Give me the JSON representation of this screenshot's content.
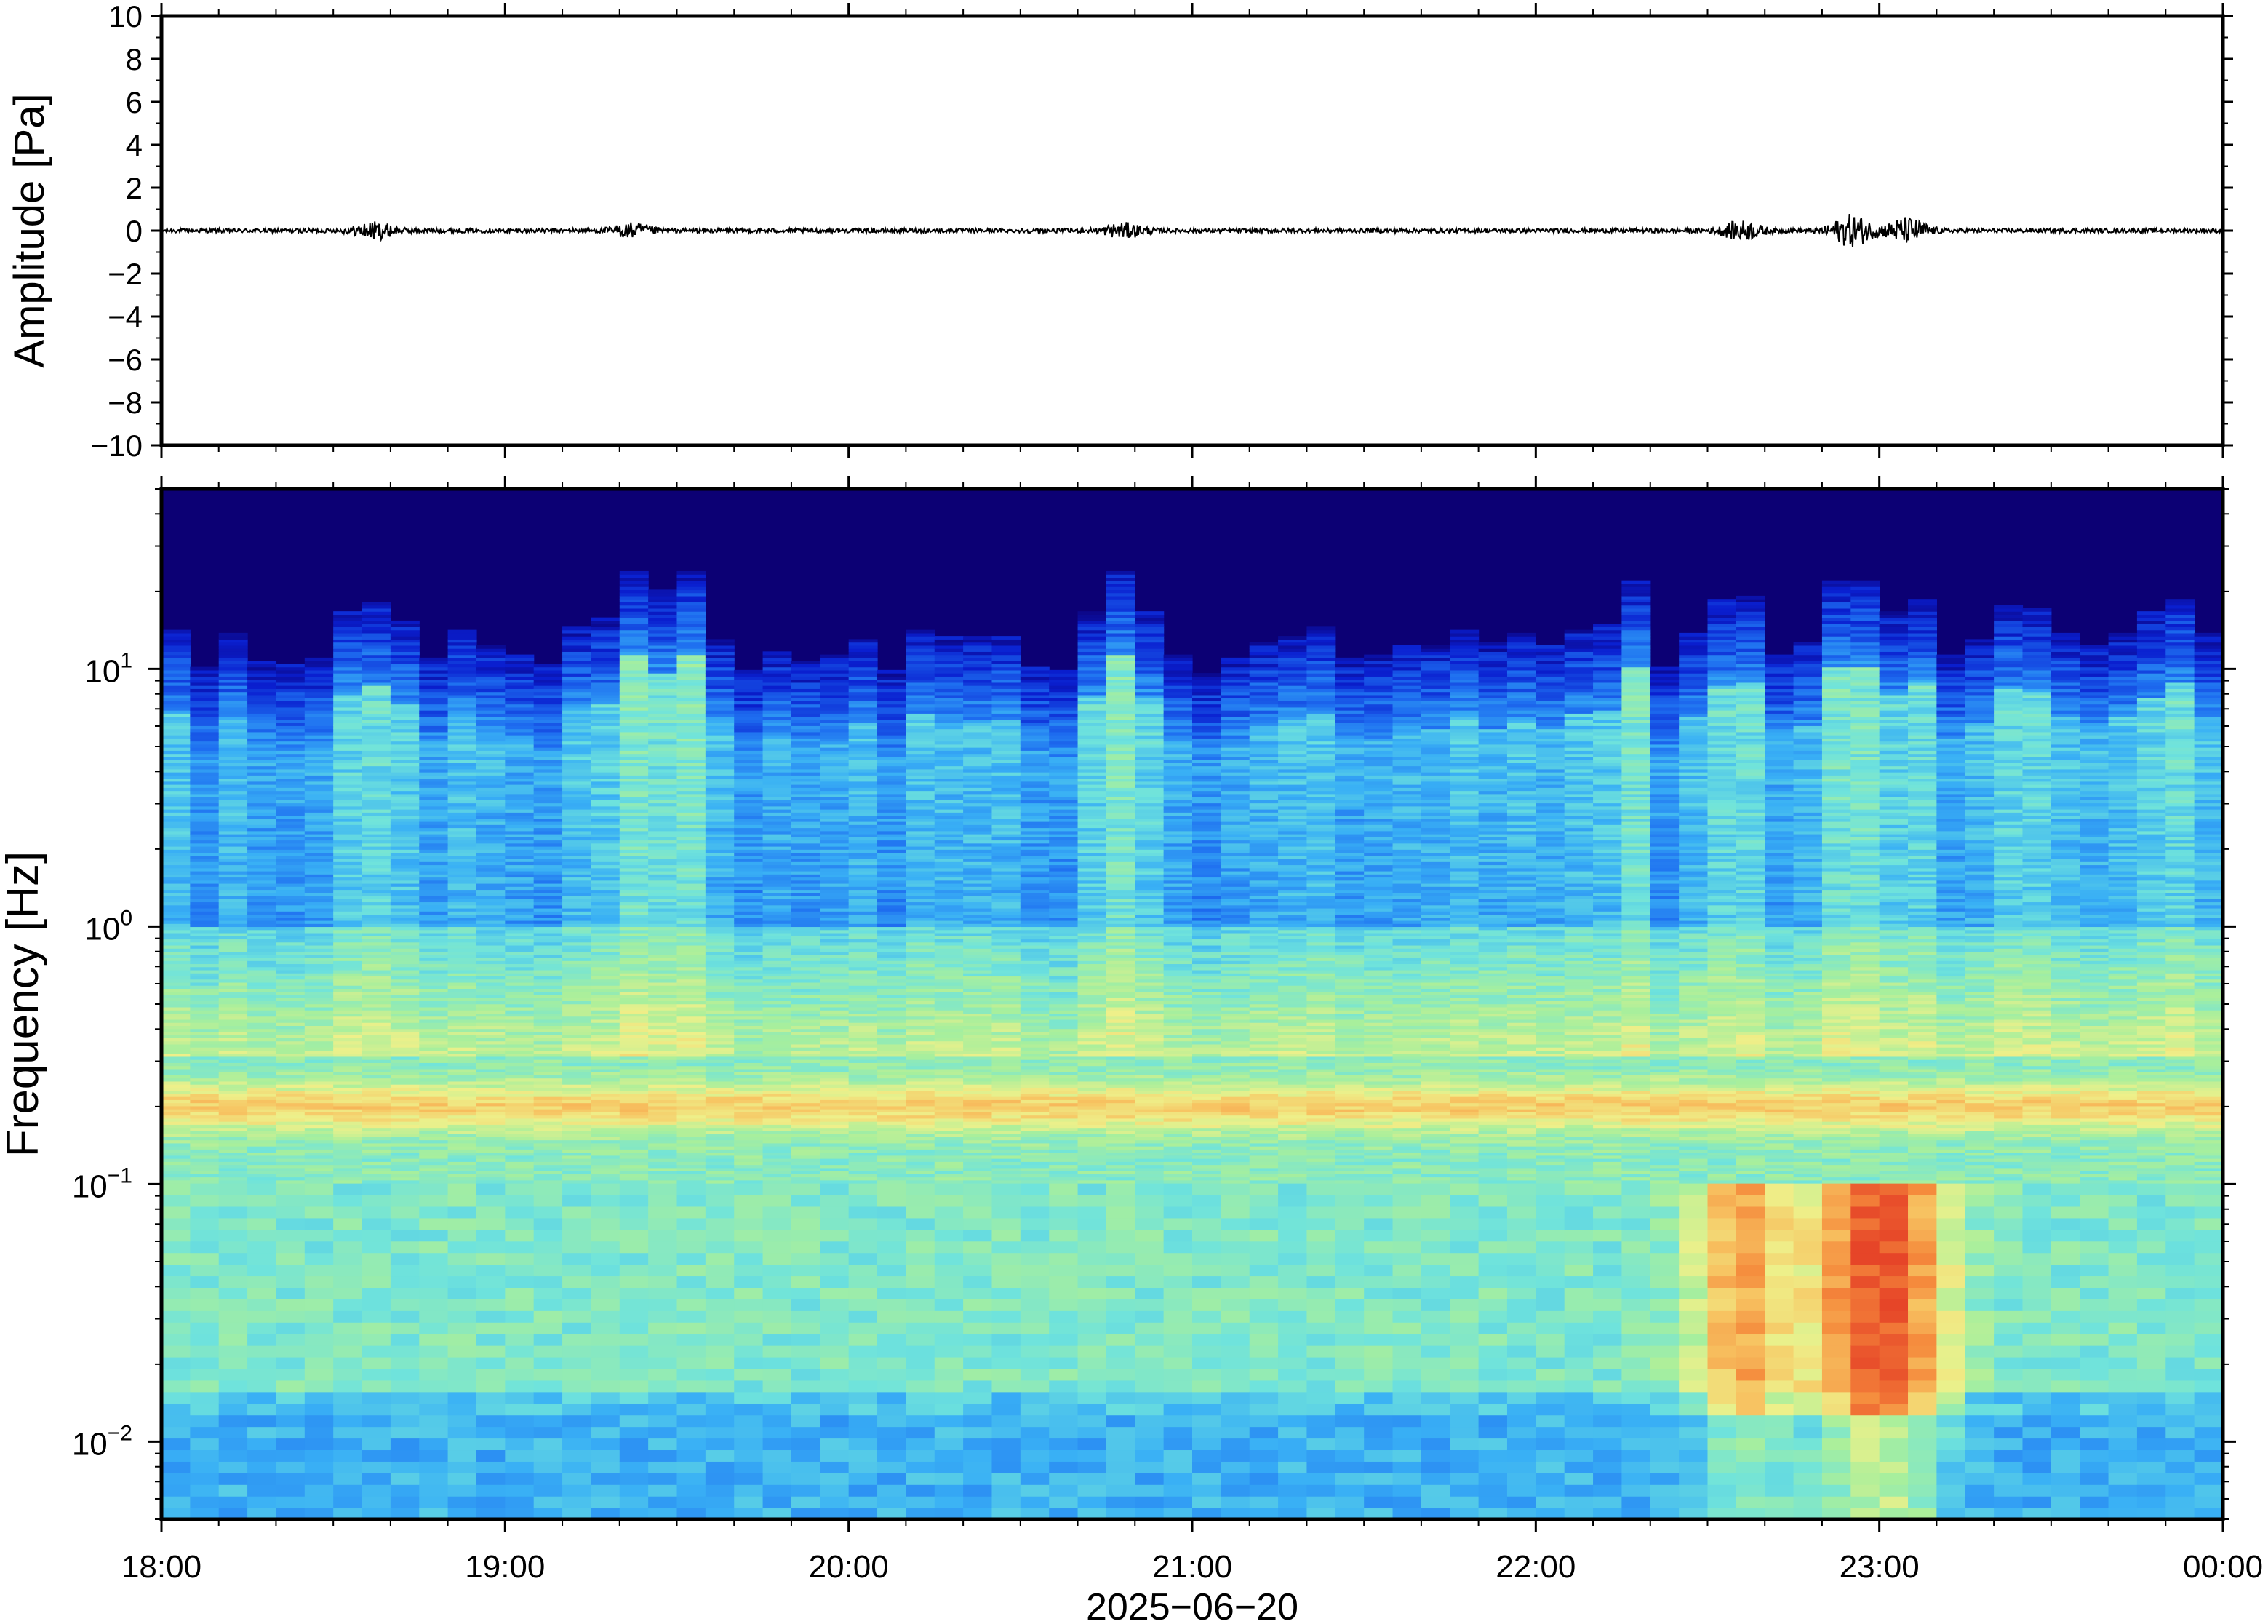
{
  "chart_data": [
    {
      "type": "line",
      "ylabel": "Amplitude [Pa]",
      "ylim": [
        -10,
        10
      ],
      "y_ticks": [
        "10",
        "8",
        "6",
        "4",
        "2",
        "0",
        "−2",
        "−4",
        "−6",
        "−8",
        "−10"
      ],
      "y_tick_values": [
        10,
        8,
        6,
        4,
        2,
        0,
        -2,
        -4,
        -6,
        -8,
        -10
      ],
      "x_range_hours": [
        18,
        24
      ],
      "series": [
        {
          "line_color": "#000000",
          "noise_amplitude_pa": 0.1,
          "bursts": [
            {
              "hour": 18.62,
              "amplitude_pa": 0.35
            },
            {
              "hour": 19.37,
              "amplitude_pa": 0.3
            },
            {
              "hour": 20.8,
              "amplitude_pa": 0.3
            },
            {
              "hour": 22.6,
              "amplitude_pa": 0.4
            },
            {
              "hour": 22.92,
              "amplitude_pa": 0.7
            },
            {
              "hour": 23.08,
              "amplitude_pa": 0.55
            }
          ]
        }
      ]
    },
    {
      "type": "heatmap",
      "ylabel": "Frequency [Hz]",
      "xlabel": "2025−06−20",
      "y_scale": "log",
      "ylim": [
        0.005,
        50
      ],
      "y_ticks": [
        {
          "base": "10",
          "exp": "1",
          "value": 10
        },
        {
          "base": "10",
          "exp": "0",
          "value": 1
        },
        {
          "base": "10",
          "exp": "−1",
          "value": 0.1
        },
        {
          "base": "10",
          "exp": "−2",
          "value": 0.01
        }
      ],
      "x_ticks": [
        "18:00",
        "19:00",
        "20:00",
        "21:00",
        "22:00",
        "23:00",
        "00:00"
      ],
      "x_tick_hours": [
        18,
        19,
        20,
        21,
        22,
        23,
        24
      ],
      "colormap": [
        "#0c0074",
        "#0a1fd0",
        "#1e6ef0",
        "#39b0f5",
        "#6fe3dc",
        "#a8ef9c",
        "#eef08a",
        "#f7c462",
        "#f58a3c",
        "#e64528"
      ],
      "background_color": "#0c0074",
      "features": {
        "microseism_band_hz": 0.2,
        "active_columns_hours": [
          18.62,
          19.37,
          19.55,
          20.8,
          22.25,
          22.6,
          22.92,
          23.08,
          23.45,
          23.8
        ],
        "low_freq_energy_hours": [
          22.6,
          22.92,
          23.08
        ]
      }
    }
  ]
}
